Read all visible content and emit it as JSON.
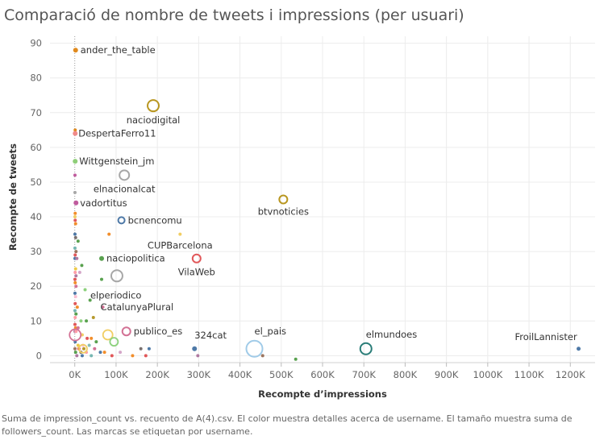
{
  "chart_data": {
    "type": "scatter",
    "title": "Comparació de nombre de tweets i impressions (per usuari)",
    "xlabel": "Recompte d’impressions",
    "ylabel": "Recompte de tweets",
    "xlim": [
      -60000,
      1260000
    ],
    "ylim": [
      -2,
      92
    ],
    "x_ticks": [
      0,
      100000,
      200000,
      300000,
      400000,
      500000,
      600000,
      700000,
      800000,
      900000,
      1000000,
      1100000,
      1200000
    ],
    "x_tick_labels": [
      "0K",
      "100K",
      "200K",
      "300K",
      "400K",
      "500K",
      "600K",
      "700K",
      "800K",
      "900K",
      "1000K",
      "1100K",
      "1200K"
    ],
    "y_ticks": [
      0,
      10,
      20,
      30,
      40,
      50,
      60,
      70,
      80,
      90
    ],
    "y_tick_labels": [
      "0",
      "10",
      "20",
      "30",
      "40",
      "50",
      "60",
      "70",
      "80",
      "90"
    ],
    "grid": true,
    "caption": "Suma de impression_count vs. recuento de A(4).csv. El color muestra detalles acerca de username. El tamaño muestra suma de followers_count. Las marcas se etiquetan por username.",
    "labeled_points": [
      {
        "label": "ander_the_table",
        "x": 2000,
        "y": 88,
        "color": "#e08a1e",
        "size": 3
      },
      {
        "label": "naciodigital",
        "x": 190000,
        "y": 72,
        "color": "#b8961f",
        "size": 7
      },
      {
        "label": "DespertaFerro11",
        "x": 1000,
        "y": 64,
        "color": "#f08a8a",
        "size": 3
      },
      {
        "label": "Wittgenstein_jm",
        "x": 1000,
        "y": 56,
        "color": "#8fce79",
        "size": 3
      },
      {
        "label": "elnacionalcat",
        "x": 120000,
        "y": 52,
        "color": "#a7a7a7",
        "size": 6
      },
      {
        "label": "vadortitus",
        "x": 3000,
        "y": 44,
        "color": "#c05c9e",
        "size": 3
      },
      {
        "label": "btvnoticies",
        "x": 505000,
        "y": 45,
        "color": "#b8961f",
        "size": 5
      },
      {
        "label": "bcnencomu",
        "x": 113000,
        "y": 39,
        "color": "#4e79a7",
        "size": 4
      },
      {
        "label": "CUPBarcelona",
        "x": 255000,
        "y": 35,
        "color": "#f1ce63",
        "size": 2
      },
      {
        "label": "naciopolitica",
        "x": 65000,
        "y": 28,
        "color": "#59a14f",
        "size": 3
      },
      {
        "label": "VilaWeb",
        "x": 295000,
        "y": 28,
        "color": "#e15759",
        "size": 5
      },
      {
        "label": "elperiodico",
        "x": 102000,
        "y": 23,
        "color": "#a7a7a7",
        "size": 7
      },
      {
        "label": "CatalunyaPlural",
        "x": 68000,
        "y": 14,
        "color": "#d37295",
        "size": 2
      },
      {
        "label": "publico_es",
        "x": 125000,
        "y": 7,
        "color": "#d37295",
        "size": 5
      },
      {
        "label": "324cat",
        "x": 290000,
        "y": 2,
        "color": "#4e79a7",
        "size": 3
      },
      {
        "label": "el_pais",
        "x": 435000,
        "y": 2,
        "color": "#a0cbe8",
        "size": 10
      },
      {
        "label": "elmundoes",
        "x": 705000,
        "y": 2,
        "color": "#2a7d78",
        "size": 7
      },
      {
        "label": "FroilLannister",
        "x": 1220000,
        "y": 2,
        "color": "#4e79a7",
        "size": 2.5
      }
    ],
    "other_points": [
      {
        "x": 1000,
        "y": 65,
        "color": "#e08a1e"
      },
      {
        "x": 500,
        "y": 52,
        "color": "#c05c9e"
      },
      {
        "x": 500,
        "y": 47,
        "color": "#a7a7a7"
      },
      {
        "x": 1000,
        "y": 41,
        "color": "#f28e2b"
      },
      {
        "x": 500,
        "y": 40,
        "color": "#f1ce63"
      },
      {
        "x": 1000,
        "y": 39,
        "color": "#e15759"
      },
      {
        "x": 2000,
        "y": 38,
        "color": "#f28e2b"
      },
      {
        "x": 500,
        "y": 35,
        "color": "#4e79a7"
      },
      {
        "x": 2000,
        "y": 34,
        "color": "#79706e"
      },
      {
        "x": 8000,
        "y": 33,
        "color": "#59a14f"
      },
      {
        "x": 83000,
        "y": 35,
        "color": "#f28e2b"
      },
      {
        "x": 500,
        "y": 31,
        "color": "#76b7b2"
      },
      {
        "x": 3000,
        "y": 30,
        "color": "#9c755f"
      },
      {
        "x": 1000,
        "y": 29,
        "color": "#e15759"
      },
      {
        "x": 500,
        "y": 28,
        "color": "#4e79a7"
      },
      {
        "x": 5000,
        "y": 28,
        "color": "#b07aa1"
      },
      {
        "x": 17000,
        "y": 26,
        "color": "#59a14f"
      },
      {
        "x": 2000,
        "y": 25,
        "color": "#edc948"
      },
      {
        "x": 1000,
        "y": 24,
        "color": "#ff9da7"
      },
      {
        "x": 12000,
        "y": 24,
        "color": "#d4a6c8"
      },
      {
        "x": 3000,
        "y": 23,
        "color": "#b07aa1"
      },
      {
        "x": 500,
        "y": 22,
        "color": "#e15759"
      },
      {
        "x": 65000,
        "y": 22,
        "color": "#59a14f"
      },
      {
        "x": 1000,
        "y": 21,
        "color": "#f28e2b"
      },
      {
        "x": 3000,
        "y": 20,
        "color": "#d37295"
      },
      {
        "x": 25000,
        "y": 19,
        "color": "#8cd17d"
      },
      {
        "x": 500,
        "y": 18,
        "color": "#4e79a7"
      },
      {
        "x": 2000,
        "y": 17,
        "color": "#fabfd2"
      },
      {
        "x": 37000,
        "y": 16,
        "color": "#59a14f"
      },
      {
        "x": 1000,
        "y": 15,
        "color": "#e15759"
      },
      {
        "x": 6000,
        "y": 14,
        "color": "#f28e2b"
      },
      {
        "x": 500,
        "y": 13,
        "color": "#76b7b2"
      },
      {
        "x": 3000,
        "y": 12,
        "color": "#59a14f"
      },
      {
        "x": 45000,
        "y": 11,
        "color": "#b6992d"
      },
      {
        "x": 1000,
        "y": 11,
        "color": "#ff9da7"
      },
      {
        "x": 15000,
        "y": 10,
        "color": "#8cd17d"
      },
      {
        "x": 28000,
        "y": 10,
        "color": "#59a14f"
      },
      {
        "x": 500,
        "y": 9,
        "color": "#e15759"
      },
      {
        "x": 2000,
        "y": 8,
        "color": "#f28e2b"
      },
      {
        "x": 8000,
        "y": 8,
        "color": "#d37295"
      },
      {
        "x": 500,
        "y": 7,
        "color": "#b07aa1"
      },
      {
        "x": 3000,
        "y": 7,
        "color": "#ff9da7"
      },
      {
        "x": 18000,
        "y": 6,
        "color": "#f1ce63"
      },
      {
        "x": 30000,
        "y": 5,
        "color": "#e15759"
      },
      {
        "x": 40000,
        "y": 5,
        "color": "#f28e2b"
      },
      {
        "x": 52000,
        "y": 4,
        "color": "#59a14f"
      },
      {
        "x": 1000,
        "y": 4,
        "color": "#4e79a7"
      },
      {
        "x": 8000,
        "y": 3,
        "color": "#edc948"
      },
      {
        "x": 20000,
        "y": 3,
        "color": "#fabfd2"
      },
      {
        "x": 35000,
        "y": 3,
        "color": "#86bcb6"
      },
      {
        "x": 500,
        "y": 2,
        "color": "#9c755f"
      },
      {
        "x": 10000,
        "y": 2,
        "color": "#e15759"
      },
      {
        "x": 22000,
        "y": 2,
        "color": "#b6992d"
      },
      {
        "x": 48000,
        "y": 2,
        "color": "#d37295"
      },
      {
        "x": 62000,
        "y": 1,
        "color": "#4e79a7"
      },
      {
        "x": 72000,
        "y": 1,
        "color": "#f28e2b"
      },
      {
        "x": 2000,
        "y": 1,
        "color": "#59a14f"
      },
      {
        "x": 15000,
        "y": 1,
        "color": "#79706e"
      },
      {
        "x": 28000,
        "y": 1,
        "color": "#ff9da7"
      },
      {
        "x": 40000,
        "y": 0,
        "color": "#76b7b2"
      },
      {
        "x": 90000,
        "y": 0,
        "color": "#e15759"
      },
      {
        "x": 5000,
        "y": 0,
        "color": "#b07aa1"
      },
      {
        "x": 18000,
        "y": 0,
        "color": "#4e79a7"
      },
      {
        "x": 80000,
        "y": 6,
        "color": "#f1ce63",
        "size": 6
      },
      {
        "x": 95000,
        "y": 4,
        "color": "#8cd17d",
        "size": 5
      },
      {
        "x": 20000,
        "y": 2,
        "color": "#f1ce63",
        "size": 5
      },
      {
        "x": 1000,
        "y": 6,
        "color": "#d37295",
        "size": 7
      },
      {
        "x": 160000,
        "y": 2,
        "color": "#79706e"
      },
      {
        "x": 180000,
        "y": 2,
        "color": "#4e79a7"
      },
      {
        "x": 172000,
        "y": 0,
        "color": "#e15759"
      },
      {
        "x": 298000,
        "y": 0,
        "color": "#b07aa1"
      },
      {
        "x": 455000,
        "y": 0,
        "color": "#9c755f"
      },
      {
        "x": 535000,
        "y": -1,
        "color": "#59a14f"
      },
      {
        "x": 140000,
        "y": 0,
        "color": "#f28e2b"
      },
      {
        "x": 110000,
        "y": 1,
        "color": "#d4a6c8"
      }
    ]
  }
}
